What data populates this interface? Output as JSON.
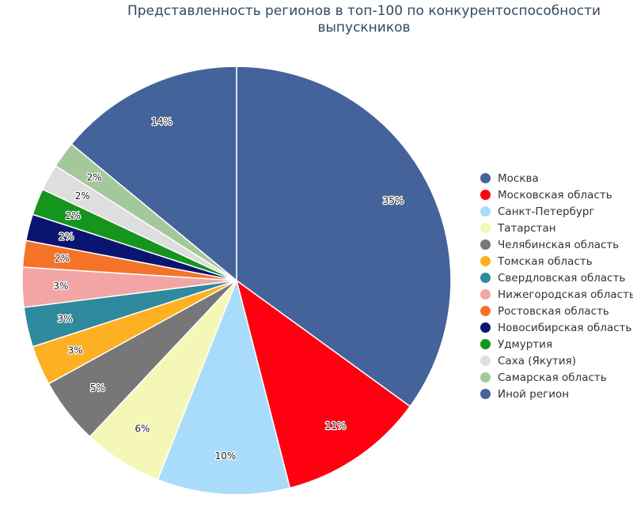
{
  "chart_data": {
    "type": "pie",
    "title_lines": [
      "Представленность регионов в топ-100 по конкурентоспособности",
      "выпускников"
    ],
    "categories": [
      "Москва",
      "Московская область",
      "Санкт-Петербург",
      "Татарстан",
      "Челябинская область",
      "Томская область",
      "Свердловская область",
      "Нижегородская область",
      "Ростовская область",
      "Новосибирская область",
      "Удмуртия",
      "Саха (Якутия)",
      "Самарская область",
      "Иной регион"
    ],
    "values": [
      35,
      11,
      10,
      6,
      5,
      3,
      3,
      3,
      2,
      2,
      2,
      2,
      2,
      14
    ],
    "labels": [
      "35%",
      "11%",
      "10%",
      "6%",
      "5%",
      "3%",
      "3%",
      "3%",
      "2%",
      "2%",
      "2%",
      "2%",
      "2%",
      "14%"
    ],
    "colors": [
      "#44639a",
      "#ff0010",
      "#a8dcfa",
      "#f5f7b6",
      "#777777",
      "#fdb021",
      "#2e8a9c",
      "#f3a5a5",
      "#f57328",
      "#0b1570",
      "#16951e",
      "#dedede",
      "#a4c89c",
      "#44639a"
    ],
    "legend_position": "right"
  }
}
